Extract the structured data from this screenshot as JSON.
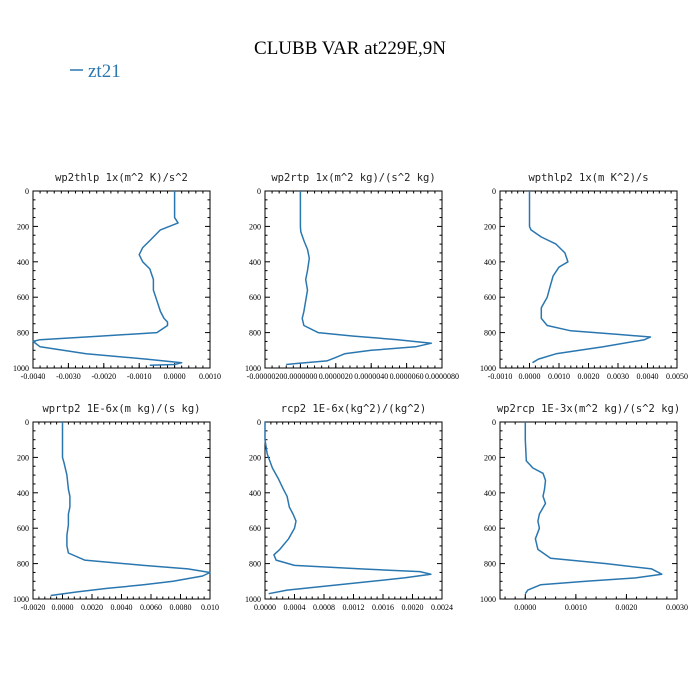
{
  "figure": {
    "title": "CLUBB VAR at229E,9N",
    "legend": "zt21",
    "series_color": "#2a77b0"
  },
  "chart_data": [
    {
      "type": "line",
      "title": "wp2thlp  1x(m^2 K)/s^2",
      "xlim": [
        -0.004,
        0.001
      ],
      "ylim": [
        1000,
        0
      ],
      "y_inverted": true,
      "xticks": [
        "-0.0040",
        "-0.0030",
        "-0.0020",
        "-0.0010",
        "0.0000",
        "0.0010"
      ],
      "xtick_values": [
        -0.004,
        -0.003,
        -0.002,
        -0.001,
        0.0,
        0.001
      ],
      "yticks": [
        "0",
        "200",
        "400",
        "600",
        "800",
        "1000"
      ],
      "ytick_values": [
        0,
        200,
        400,
        600,
        800,
        1000
      ],
      "series": [
        {
          "x": [
            0.0,
            0.0,
            0.0,
            0.0,
            0.0001,
            -0.0004,
            -0.0007,
            -0.0009,
            -0.001,
            -0.0009,
            -0.0007,
            -0.0006,
            -0.0006,
            -0.0005,
            -0.0004,
            -0.0003,
            -0.0002,
            -0.0002,
            -0.0005,
            -0.0021,
            -0.0038,
            -0.004,
            -0.0038,
            -0.0025,
            -0.0008,
            0.0002,
            0.0,
            -0.0007
          ],
          "y": [
            0,
            50,
            100,
            150,
            180,
            220,
            280,
            320,
            360,
            400,
            440,
            500,
            560,
            620,
            680,
            720,
            740,
            760,
            800,
            820,
            840,
            850,
            880,
            920,
            950,
            970,
            980,
            985
          ]
        }
      ]
    },
    {
      "type": "line",
      "title": "wp2rtp  1x(m^2 kg)/(s^2 kg)",
      "xlim": [
        -2e-06,
        8e-06
      ],
      "ylim": [
        1000,
        0
      ],
      "y_inverted": true,
      "xticks": [
        "-0.0000020",
        "0.0000000",
        "0.0000020",
        "0.0000040",
        "0.0000060",
        "0.0000080"
      ],
      "xtick_values": [
        -2e-06,
        0.0,
        2e-06,
        4e-06,
        6e-06,
        8e-06
      ],
      "yticks": [
        "0",
        "200",
        "400",
        "600",
        "800",
        "1000"
      ],
      "ytick_values": [
        0,
        200,
        400,
        600,
        800,
        1000
      ],
      "series": [
        {
          "x": [
            0.0,
            0.0,
            0.0,
            2e-08,
            2e-07,
            4e-07,
            5e-07,
            4e-07,
            3e-07,
            4e-07,
            3e-07,
            2e-07,
            1e-07,
            2e-07,
            1e-06,
            3e-06,
            5.5e-06,
            7.4e-06,
            6.5e-06,
            4e-06,
            2.5e-06,
            2e-06,
            1.5e-06,
            -3e-07,
            -8e-07
          ],
          "y": [
            0,
            100,
            200,
            230,
            280,
            330,
            380,
            450,
            500,
            560,
            620,
            680,
            720,
            760,
            800,
            820,
            840,
            860,
            880,
            900,
            920,
            940,
            960,
            975,
            980
          ]
        }
      ]
    },
    {
      "type": "line",
      "title": "wpthlp2  1x(m K^2)/s",
      "xlim": [
        -0.001,
        0.005
      ],
      "ylim": [
        1000,
        0
      ],
      "y_inverted": true,
      "xticks": [
        "-0.0010",
        "0.0000",
        "0.0010",
        "0.0020",
        "0.0030",
        "0.0040",
        "0.0050"
      ],
      "xtick_values": [
        -0.001,
        0.0,
        0.001,
        0.002,
        0.003,
        0.004,
        0.005
      ],
      "yticks": [
        "0",
        "200",
        "400",
        "600",
        "800",
        "1000"
      ],
      "ytick_values": [
        0,
        200,
        400,
        600,
        800,
        1000
      ],
      "series": [
        {
          "x": [
            0.0,
            0.0,
            0.0,
            5e-05,
            0.0004,
            0.0009,
            0.0012,
            0.0013,
            0.001,
            0.0008,
            0.0007,
            0.0006,
            0.0004,
            0.0004,
            0.0006,
            0.0014,
            0.003,
            0.0041,
            0.0039,
            0.0025,
            0.0009,
            0.0003,
            0.0001
          ],
          "y": [
            0,
            100,
            200,
            220,
            260,
            300,
            350,
            400,
            430,
            480,
            540,
            600,
            660,
            720,
            760,
            790,
            810,
            825,
            840,
            880,
            920,
            950,
            970
          ]
        }
      ]
    },
    {
      "type": "line",
      "title": "wprtp2  1E-6x(m kg)/(s kg)",
      "xlim": [
        -0.002,
        0.01
      ],
      "ylim": [
        1000,
        0
      ],
      "y_inverted": true,
      "xticks": [
        "-0.0020",
        "0.0000",
        "0.0020",
        "0.0040",
        "0.0060",
        "0.0080",
        "0.010"
      ],
      "xtick_values": [
        -0.002,
        0.0,
        0.002,
        0.004,
        0.006,
        0.008,
        0.01
      ],
      "yticks": [
        "0",
        "200",
        "400",
        "600",
        "800",
        "1000"
      ],
      "ytick_values": [
        0,
        200,
        400,
        600,
        800,
        1000
      ],
      "series": [
        {
          "x": [
            0.0,
            0.0,
            0.0,
            0.0001,
            0.0003,
            0.0004,
            0.0005,
            0.0005,
            0.0004,
            0.0004,
            0.0003,
            0.0003,
            0.0004,
            0.0015,
            0.0055,
            0.0085,
            0.01,
            0.0095,
            0.0075,
            0.0055,
            0.003,
            0.001,
            -0.0008
          ],
          "y": [
            0,
            100,
            200,
            230,
            300,
            380,
            420,
            480,
            520,
            580,
            640,
            700,
            740,
            780,
            810,
            830,
            850,
            870,
            900,
            920,
            940,
            960,
            980
          ]
        }
      ]
    },
    {
      "type": "line",
      "title": "rcp2  1E-6x(kg^2)/(kg^2)",
      "xlim": [
        0.0,
        0.0024
      ],
      "ylim": [
        1000,
        0
      ],
      "y_inverted": true,
      "xticks": [
        "0.0000",
        "0.0004",
        "0.0008",
        "0.0012",
        "0.0016",
        "0.0020",
        "0.0024"
      ],
      "xtick_values": [
        0.0,
        0.0004,
        0.0008,
        0.0012,
        0.0016,
        0.002,
        0.0024
      ],
      "yticks": [
        "0",
        "200",
        "400",
        "600",
        "800",
        "1000"
      ],
      "ytick_values": [
        0,
        200,
        400,
        600,
        800,
        1000
      ],
      "series": [
        {
          "x": [
            0.0,
            0.0,
            3e-05,
            0.0001,
            0.00018,
            0.00025,
            0.0003,
            0.00033,
            0.00038,
            0.00042,
            0.0004,
            0.00032,
            0.0002,
            0.00012,
            0.00015,
            0.0004,
            0.0013,
            0.0021,
            0.00225,
            0.0019,
            0.001,
            0.0003,
            5e-05
          ],
          "y": [
            0,
            100,
            180,
            260,
            320,
            380,
            420,
            480,
            520,
            560,
            600,
            660,
            720,
            750,
            780,
            810,
            830,
            845,
            860,
            880,
            920,
            950,
            970
          ]
        }
      ]
    },
    {
      "type": "line",
      "title": "wp2rcp  1E-3x(m^2 kg)/(s^2 kg)",
      "xlim": [
        -0.0005,
        0.003
      ],
      "ylim": [
        1000,
        0
      ],
      "y_inverted": true,
      "xticks": [
        "0.0000",
        "0.0010",
        "0.0020",
        "0.0030"
      ],
      "xtick_values": [
        0.0,
        0.001,
        0.002,
        0.003
      ],
      "yticks": [
        "0",
        "200",
        "400",
        "600",
        "800",
        "1000"
      ],
      "ytick_values": [
        0,
        200,
        400,
        600,
        800,
        1000
      ],
      "series": [
        {
          "x": [
            0.0,
            0.0,
            2e-05,
            0.00015,
            0.00035,
            0.0004,
            0.00038,
            0.00035,
            0.0004,
            0.00028,
            0.00025,
            0.00028,
            0.0002,
            0.00025,
            0.0005,
            0.0016,
            0.0025,
            0.0027,
            0.0022,
            0.0012,
            0.0003,
            5e-05,
            0.0
          ],
          "y": [
            0,
            100,
            220,
            260,
            290,
            330,
            380,
            420,
            460,
            520,
            560,
            600,
            660,
            720,
            770,
            800,
            830,
            860,
            880,
            900,
            920,
            950,
            970
          ]
        }
      ]
    }
  ]
}
